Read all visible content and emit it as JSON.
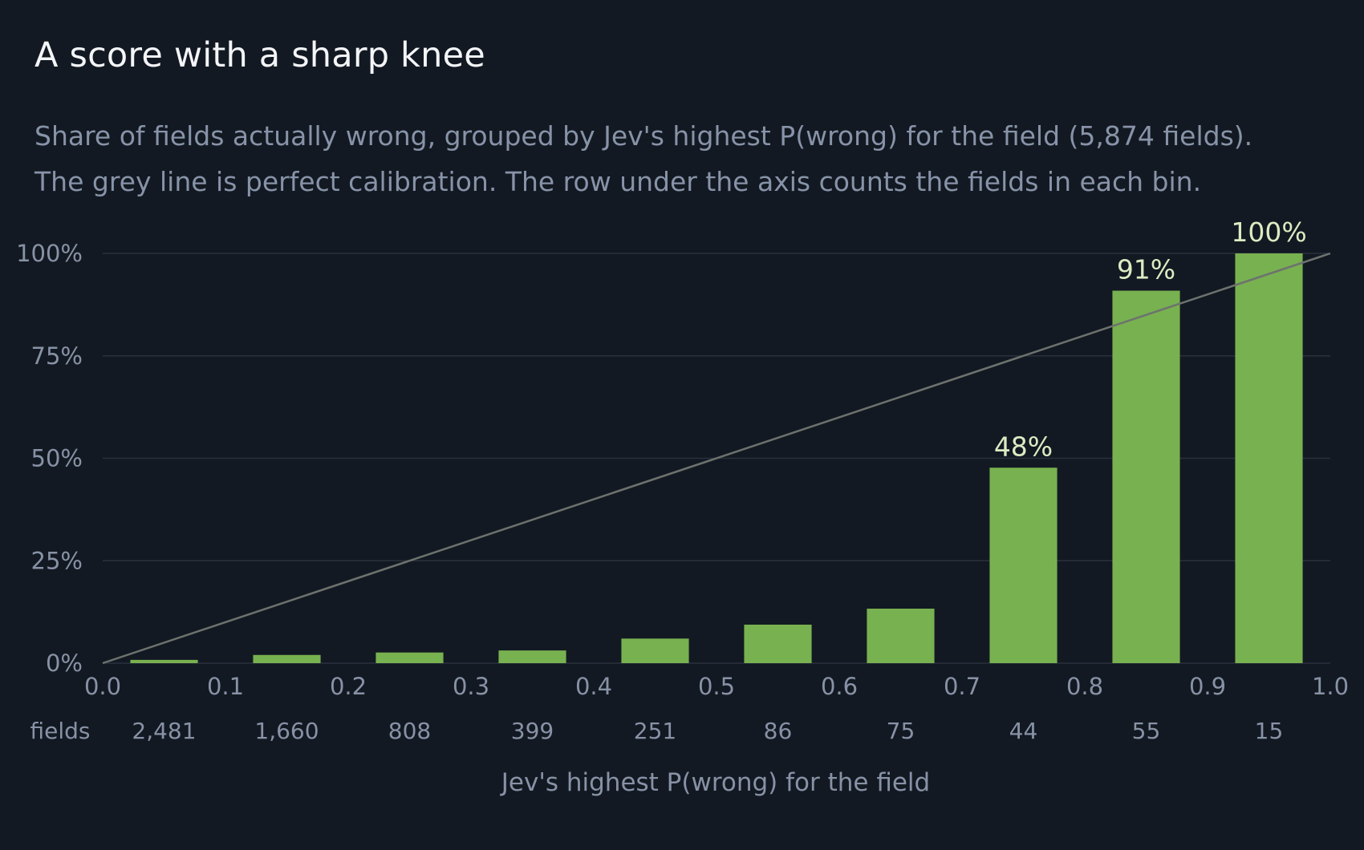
{
  "header": {
    "title": "A score with a sharp knee",
    "subtitle_lines": [
      "Share of fields actually wrong, grouped by Jev's highest P(wrong) for the field (5,874 fields).",
      "The grey line is perfect calibration. The row under the axis counts the fields in each bin."
    ]
  },
  "chart_data": {
    "type": "bar",
    "title": "A score with a sharp knee",
    "xlabel": "Jev's highest P(wrong) for the field",
    "ylabel": "",
    "xlim": [
      0.0,
      1.0
    ],
    "ylim": [
      0,
      100
    ],
    "x_ticks": [
      "0.0",
      "0.1",
      "0.2",
      "0.3",
      "0.4",
      "0.5",
      "0.6",
      "0.7",
      "0.8",
      "0.9",
      "1.0"
    ],
    "y_ticks": [
      "0%",
      "25%",
      "50%",
      "75%",
      "100%"
    ],
    "y_tick_values": [
      0,
      25,
      50,
      75,
      100
    ],
    "bins": [
      {
        "from": 0.0,
        "to": 0.1
      },
      {
        "from": 0.1,
        "to": 0.2
      },
      {
        "from": 0.2,
        "to": 0.3
      },
      {
        "from": 0.3,
        "to": 0.4
      },
      {
        "from": 0.4,
        "to": 0.5
      },
      {
        "from": 0.5,
        "to": 0.6
      },
      {
        "from": 0.6,
        "to": 0.7
      },
      {
        "from": 0.7,
        "to": 0.8
      },
      {
        "from": 0.8,
        "to": 0.9
      },
      {
        "from": 0.9,
        "to": 1.0
      }
    ],
    "values": [
      0.8,
      2.0,
      2.6,
      3.1,
      6.0,
      9.4,
      13.3,
      47.7,
      90.9,
      100
    ],
    "value_labels": [
      "",
      "",
      "",
      "",
      "",
      "",
      "",
      "48%",
      "91%",
      "100%"
    ],
    "counts_row_label": "fields",
    "counts": [
      "2,481",
      "1,660",
      "808",
      "399",
      "251",
      "86",
      "75",
      "44",
      "55",
      "15"
    ],
    "reference_line": {
      "from": [
        0.0,
        0
      ],
      "to": [
        1.0,
        100
      ]
    },
    "grid": true,
    "colors": {
      "bar": "#78b150",
      "reference_line": "#6d726e",
      "grid": "#2a313d",
      "bar_label": "#dcebc2",
      "background": "#131922"
    }
  }
}
